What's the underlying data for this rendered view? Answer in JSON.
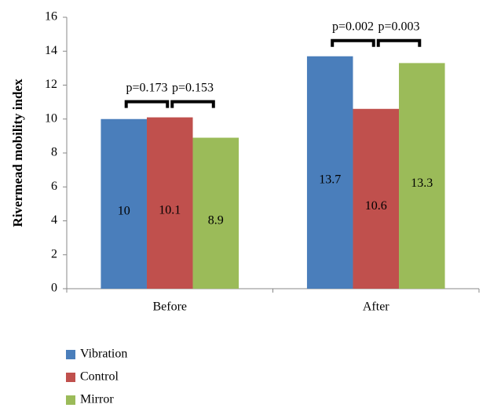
{
  "chart_data": {
    "type": "bar",
    "y_label": "Rivermead mobility index",
    "categories": [
      "Before",
      "After"
    ],
    "series": [
      {
        "name": "Vibration",
        "color": "#4a7ebb",
        "values": [
          10,
          13.7
        ]
      },
      {
        "name": "Control",
        "color": "#c0504d",
        "values": [
          10.1,
          10.6
        ]
      },
      {
        "name": "Mirror",
        "color": "#9bbb59",
        "values": [
          8.9,
          13.3
        ]
      }
    ],
    "annotations": [
      "p=0.173",
      "p=0.153",
      "p=0.002",
      "p=0.003"
    ],
    "ylim": [
      0,
      16
    ],
    "yticks": [
      0,
      2,
      4,
      6,
      8,
      10,
      12,
      14,
      16
    ],
    "grid": false,
    "legend": "bottom-left"
  }
}
